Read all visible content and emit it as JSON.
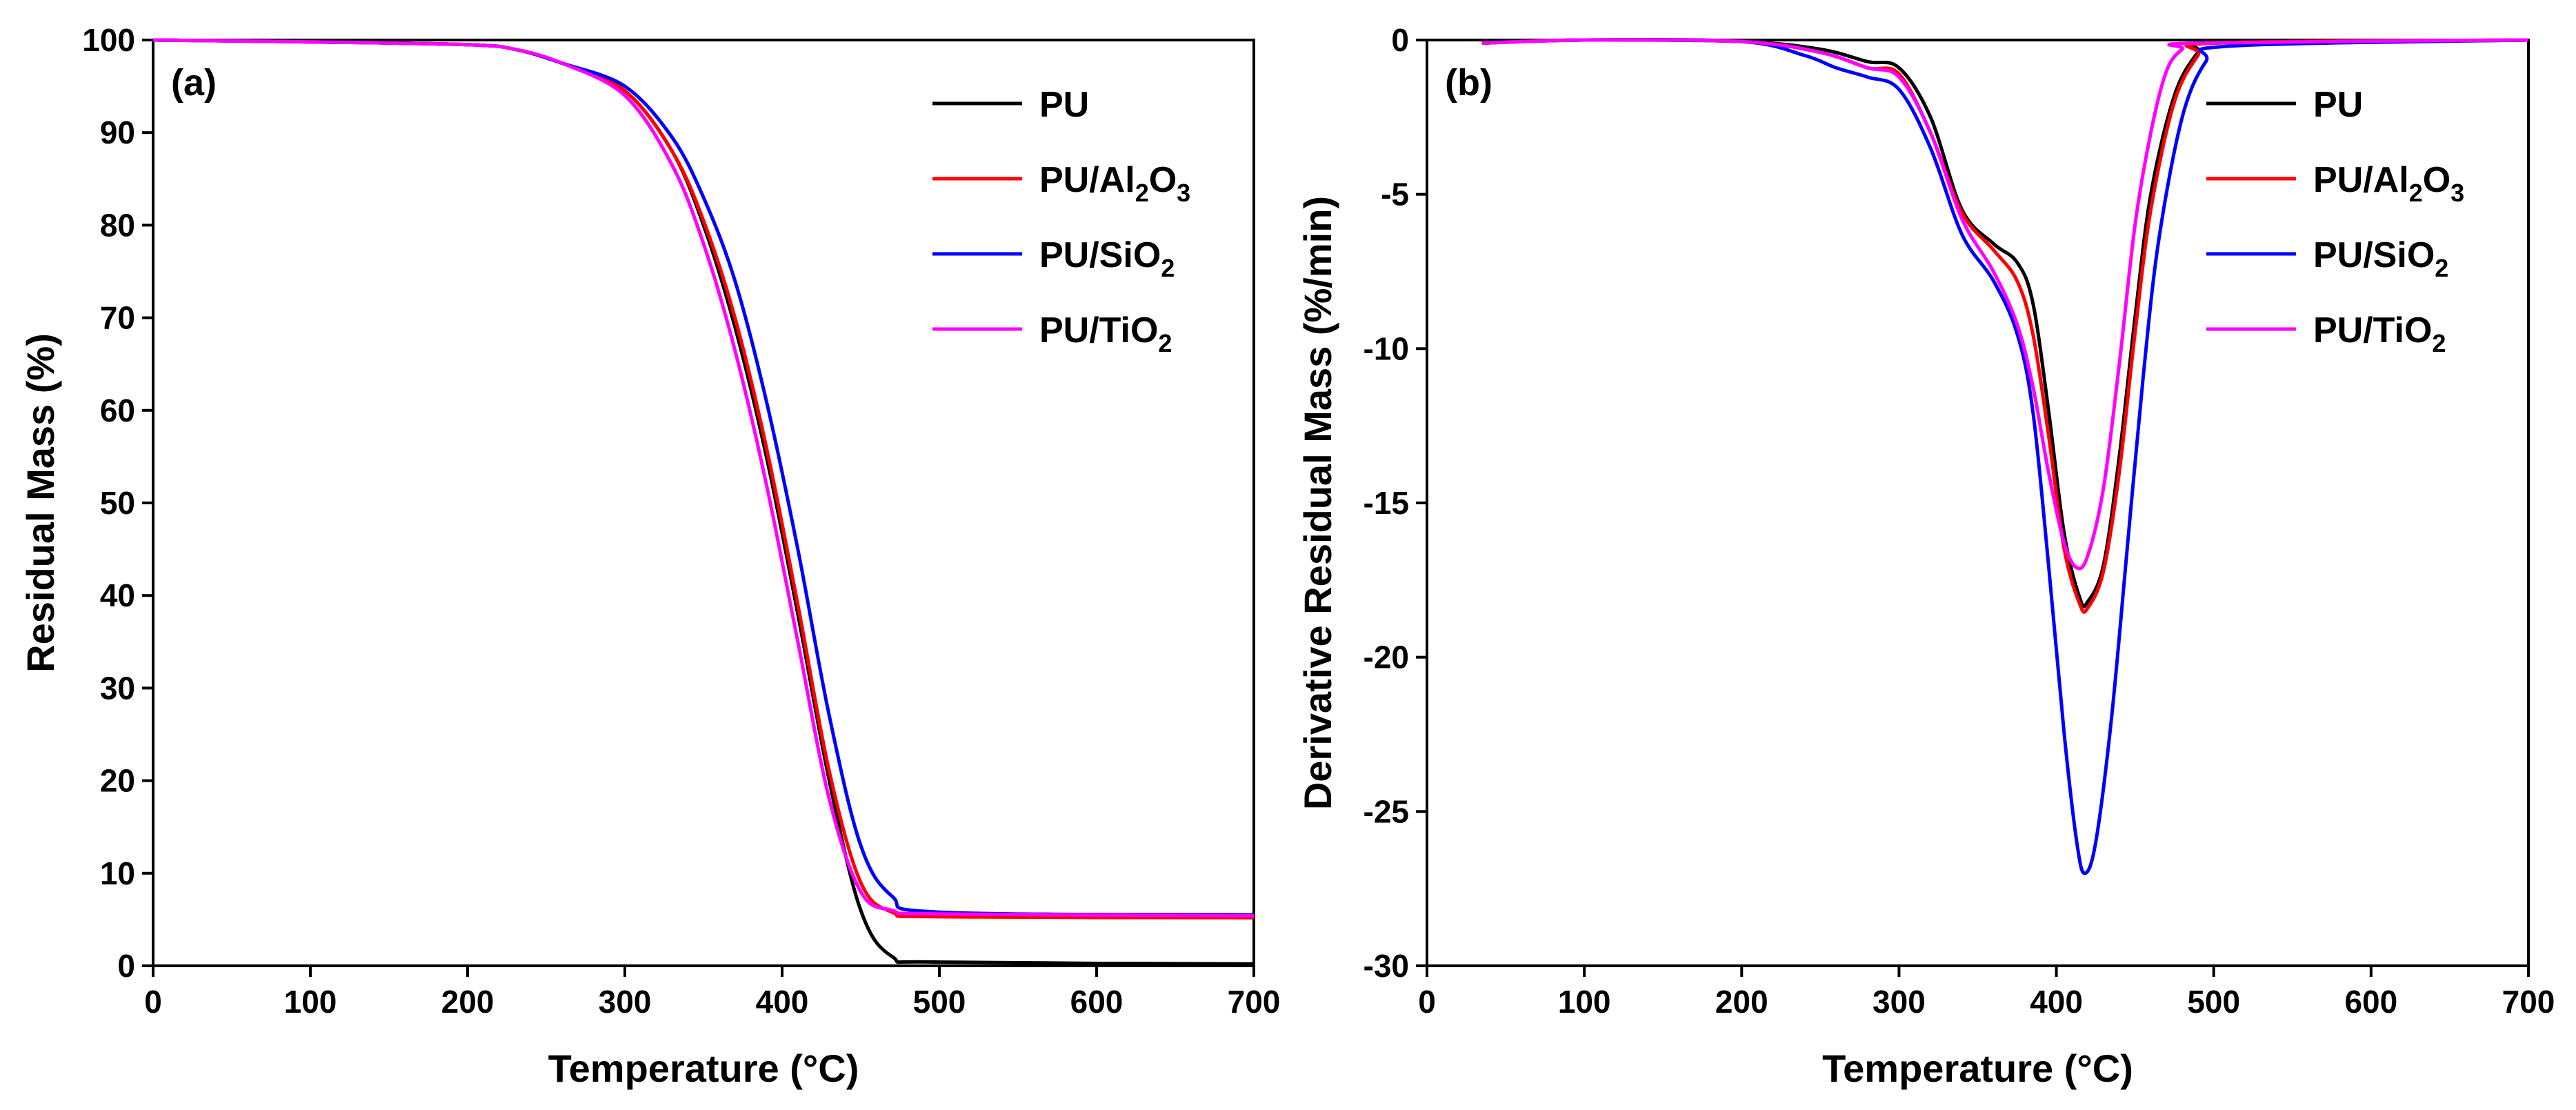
{
  "chart_data": [
    {
      "id": "a",
      "type": "line",
      "panel_label": "(a)",
      "xlabel": "Temperature (°C)",
      "ylabel": "Residual Mass (%)",
      "xlim": [
        0,
        700
      ],
      "ylim": [
        0,
        100
      ],
      "xticks": [
        0,
        100,
        200,
        300,
        400,
        500,
        600,
        700
      ],
      "yticks": [
        0,
        10,
        20,
        30,
        40,
        50,
        60,
        70,
        80,
        90,
        100
      ],
      "legend_position": "top-right",
      "series": [
        {
          "name": "PU",
          "formula": [
            {
              "t": "PU"
            }
          ],
          "color": "#000000",
          "points": [
            [
              0,
              100
            ],
            [
              100,
              99.8
            ],
            [
              200,
              99.5
            ],
            [
              230,
              99
            ],
            [
              260,
              97.5
            ],
            [
              300,
              94.5
            ],
            [
              330,
              88
            ],
            [
              350,
              80
            ],
            [
              370,
              69
            ],
            [
              390,
              55
            ],
            [
              410,
              38
            ],
            [
              430,
              20
            ],
            [
              450,
              6
            ],
            [
              470,
              1
            ],
            [
              500,
              0.4
            ],
            [
              700,
              0.2
            ]
          ]
        },
        {
          "name": "PU/Al2O3",
          "formula": [
            {
              "t": "PU/Al"
            },
            {
              "t": "2",
              "sub": true
            },
            {
              "t": "O"
            },
            {
              "t": "3",
              "sub": true
            }
          ],
          "color": "#ff0000",
          "points": [
            [
              0,
              100
            ],
            [
              100,
              99.8
            ],
            [
              200,
              99.5
            ],
            [
              230,
              99
            ],
            [
              260,
              97.5
            ],
            [
              300,
              94.5
            ],
            [
              330,
              88
            ],
            [
              350,
              80.5
            ],
            [
              370,
              70
            ],
            [
              390,
              56
            ],
            [
              410,
              39
            ],
            [
              430,
              21
            ],
            [
              450,
              9
            ],
            [
              470,
              5.8
            ],
            [
              500,
              5.3
            ],
            [
              700,
              5.2
            ]
          ]
        },
        {
          "name": "PU/SiO2",
          "formula": [
            {
              "t": "PU/SiO"
            },
            {
              "t": "2",
              "sub": true
            }
          ],
          "color": "#0000ff",
          "points": [
            [
              0,
              100
            ],
            [
              100,
              99.8
            ],
            [
              200,
              99.5
            ],
            [
              230,
              99
            ],
            [
              260,
              97.5
            ],
            [
              300,
              95
            ],
            [
              330,
              89.5
            ],
            [
              350,
              83
            ],
            [
              370,
              74
            ],
            [
              390,
              61
            ],
            [
              410,
              45
            ],
            [
              430,
              27
            ],
            [
              450,
              13
            ],
            [
              470,
              7.5
            ],
            [
              500,
              5.8
            ],
            [
              700,
              5.5
            ]
          ]
        },
        {
          "name": "PU/TiO2",
          "formula": [
            {
              "t": "PU/TiO"
            },
            {
              "t": "2",
              "sub": true
            }
          ],
          "color": "#ff00ff",
          "points": [
            [
              0,
              100
            ],
            [
              100,
              99.8
            ],
            [
              200,
              99.5
            ],
            [
              230,
              99
            ],
            [
              260,
              97.5
            ],
            [
              300,
              94
            ],
            [
              330,
              86.5
            ],
            [
              350,
              78
            ],
            [
              370,
              66.5
            ],
            [
              390,
              52
            ],
            [
              410,
              35
            ],
            [
              430,
              18
            ],
            [
              450,
              8
            ],
            [
              470,
              6
            ],
            [
              500,
              5.6
            ],
            [
              700,
              5.4
            ]
          ]
        }
      ]
    },
    {
      "id": "b",
      "type": "line",
      "panel_label": "(b)",
      "xlabel": "Temperature (°C)",
      "ylabel": "Derivative Residual Mass (%/min)",
      "xlim": [
        0,
        700
      ],
      "ylim": [
        -30,
        0
      ],
      "xticks": [
        0,
        100,
        200,
        300,
        400,
        500,
        600,
        700
      ],
      "yticks": [
        0,
        -5,
        -10,
        -15,
        -20,
        -25,
        -30
      ],
      "legend_position": "top-right",
      "series": [
        {
          "name": "PU",
          "formula": [
            {
              "t": "PU"
            }
          ],
          "color": "#000000",
          "points": [
            [
              35,
              -0.1
            ],
            [
              100,
              0
            ],
            [
              200,
              -0.05
            ],
            [
              250,
              -0.3
            ],
            [
              280,
              -0.7
            ],
            [
              300,
              -0.9
            ],
            [
              320,
              -2.5
            ],
            [
              340,
              -5.5
            ],
            [
              360,
              -6.6
            ],
            [
              375,
              -7.2
            ],
            [
              385,
              -8.5
            ],
            [
              395,
              -12
            ],
            [
              405,
              -16
            ],
            [
              415,
              -18.1
            ],
            [
              420,
              -18.2
            ],
            [
              430,
              -17
            ],
            [
              440,
              -13.5
            ],
            [
              450,
              -9
            ],
            [
              460,
              -5
            ],
            [
              475,
              -1.8
            ],
            [
              490,
              -0.4
            ],
            [
              500,
              -0.1
            ],
            [
              700,
              0
            ]
          ]
        },
        {
          "name": "PU/Al2O3",
          "formula": [
            {
              "t": "PU/Al"
            },
            {
              "t": "2",
              "sub": true
            },
            {
              "t": "O"
            },
            {
              "t": "3",
              "sub": true
            }
          ],
          "color": "#ff0000",
          "points": [
            [
              35,
              -0.1
            ],
            [
              100,
              0
            ],
            [
              200,
              -0.05
            ],
            [
              250,
              -0.4
            ],
            [
              280,
              -0.9
            ],
            [
              300,
              -1.1
            ],
            [
              320,
              -3
            ],
            [
              340,
              -5.6
            ],
            [
              360,
              -6.8
            ],
            [
              375,
              -7.8
            ],
            [
              385,
              -9.5
            ],
            [
              395,
              -12.8
            ],
            [
              405,
              -16.5
            ],
            [
              415,
              -18.3
            ],
            [
              420,
              -18.4
            ],
            [
              430,
              -17.2
            ],
            [
              440,
              -14
            ],
            [
              450,
              -9.5
            ],
            [
              460,
              -5.5
            ],
            [
              475,
              -2
            ],
            [
              490,
              -0.5
            ],
            [
              500,
              -0.1
            ],
            [
              700,
              0
            ]
          ]
        },
        {
          "name": "PU/SiO2",
          "formula": [
            {
              "t": "PU/SiO"
            },
            {
              "t": "2",
              "sub": true
            }
          ],
          "color": "#0000ff",
          "points": [
            [
              35,
              -0.1
            ],
            [
              100,
              0
            ],
            [
              200,
              -0.05
            ],
            [
              240,
              -0.5
            ],
            [
              260,
              -0.9
            ],
            [
              280,
              -1.2
            ],
            [
              300,
              -1.6
            ],
            [
              320,
              -3.5
            ],
            [
              340,
              -6.3
            ],
            [
              360,
              -7.8
            ],
            [
              375,
              -9.5
            ],
            [
              385,
              -12
            ],
            [
              395,
              -17
            ],
            [
              405,
              -22.5
            ],
            [
              413,
              -26
            ],
            [
              418,
              -27
            ],
            [
              425,
              -26
            ],
            [
              435,
              -22
            ],
            [
              445,
              -16.5
            ],
            [
              455,
              -11
            ],
            [
              465,
              -6.5
            ],
            [
              480,
              -2.5
            ],
            [
              495,
              -0.7
            ],
            [
              510,
              -0.2
            ],
            [
              700,
              0
            ]
          ]
        },
        {
          "name": "PU/TiO2",
          "formula": [
            {
              "t": "PU/TiO"
            },
            {
              "t": "2",
              "sub": true
            }
          ],
          "color": "#ff00ff",
          "points": [
            [
              35,
              -0.1
            ],
            [
              100,
              0
            ],
            [
              200,
              -0.05
            ],
            [
              250,
              -0.4
            ],
            [
              280,
              -0.9
            ],
            [
              300,
              -1.2
            ],
            [
              320,
              -3
            ],
            [
              340,
              -5.8
            ],
            [
              360,
              -7.5
            ],
            [
              375,
              -9.2
            ],
            [
              385,
              -11.2
            ],
            [
              395,
              -14
            ],
            [
              405,
              -16.3
            ],
            [
              413,
              -17.1
            ],
            [
              420,
              -16.7
            ],
            [
              430,
              -14.5
            ],
            [
              440,
              -10.5
            ],
            [
              450,
              -6
            ],
            [
              460,
              -3
            ],
            [
              470,
              -1
            ],
            [
              480,
              -0.3
            ],
            [
              490,
              -0.1
            ],
            [
              700,
              0
            ]
          ]
        }
      ]
    }
  ]
}
